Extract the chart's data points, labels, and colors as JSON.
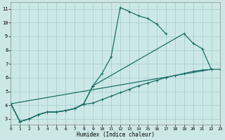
{
  "xlabel": "Humidex (Indice chaleur)",
  "bg_color": "#cce8e6",
  "grid_color": "#aacfcc",
  "line_color": "#1a6e66",
  "xlim": [
    0,
    23
  ],
  "ylim": [
    2.6,
    11.5
  ],
  "xticks": [
    0,
    1,
    2,
    3,
    4,
    5,
    6,
    7,
    8,
    9,
    10,
    11,
    12,
    13,
    14,
    15,
    16,
    17,
    18,
    19,
    20,
    21,
    22,
    23
  ],
  "yticks": [
    3,
    4,
    5,
    6,
    7,
    8,
    9,
    10,
    11
  ],
  "curve1_x": [
    0,
    1,
    2,
    3,
    4,
    5,
    6,
    7,
    8,
    9,
    10,
    11,
    12,
    13,
    14,
    15,
    16,
    17
  ],
  "curve1_y": [
    4.1,
    2.8,
    3.0,
    3.3,
    3.5,
    3.5,
    3.6,
    3.75,
    4.1,
    5.4,
    6.3,
    7.5,
    11.1,
    10.8,
    10.5,
    10.3,
    9.9,
    9.2
  ],
  "curve2_seg1_x": [
    0,
    1,
    2,
    3,
    4,
    5,
    6,
    7,
    8,
    9
  ],
  "curve2_seg1_y": [
    4.1,
    2.8,
    3.0,
    3.3,
    3.5,
    3.5,
    3.6,
    3.75,
    4.1,
    5.4
  ],
  "curve2_seg2_x": [
    9,
    19,
    20,
    21,
    22
  ],
  "curve2_seg2_y": [
    5.4,
    9.2,
    8.5,
    8.1,
    6.6
  ],
  "curve3_x": [
    0,
    22
  ],
  "curve3_y": [
    4.1,
    6.6
  ],
  "curve4_x": [
    0,
    1,
    2,
    3,
    4,
    5,
    6,
    7,
    8,
    9,
    10,
    11,
    12,
    13,
    14,
    15,
    16,
    17,
    18,
    19,
    20,
    21,
    22,
    23
  ],
  "curve4_y": [
    4.1,
    2.8,
    3.0,
    3.3,
    3.5,
    3.5,
    3.6,
    3.75,
    4.05,
    4.15,
    4.4,
    4.65,
    4.9,
    5.15,
    5.4,
    5.6,
    5.8,
    6.0,
    6.15,
    6.3,
    6.45,
    6.55,
    6.6,
    6.6
  ]
}
